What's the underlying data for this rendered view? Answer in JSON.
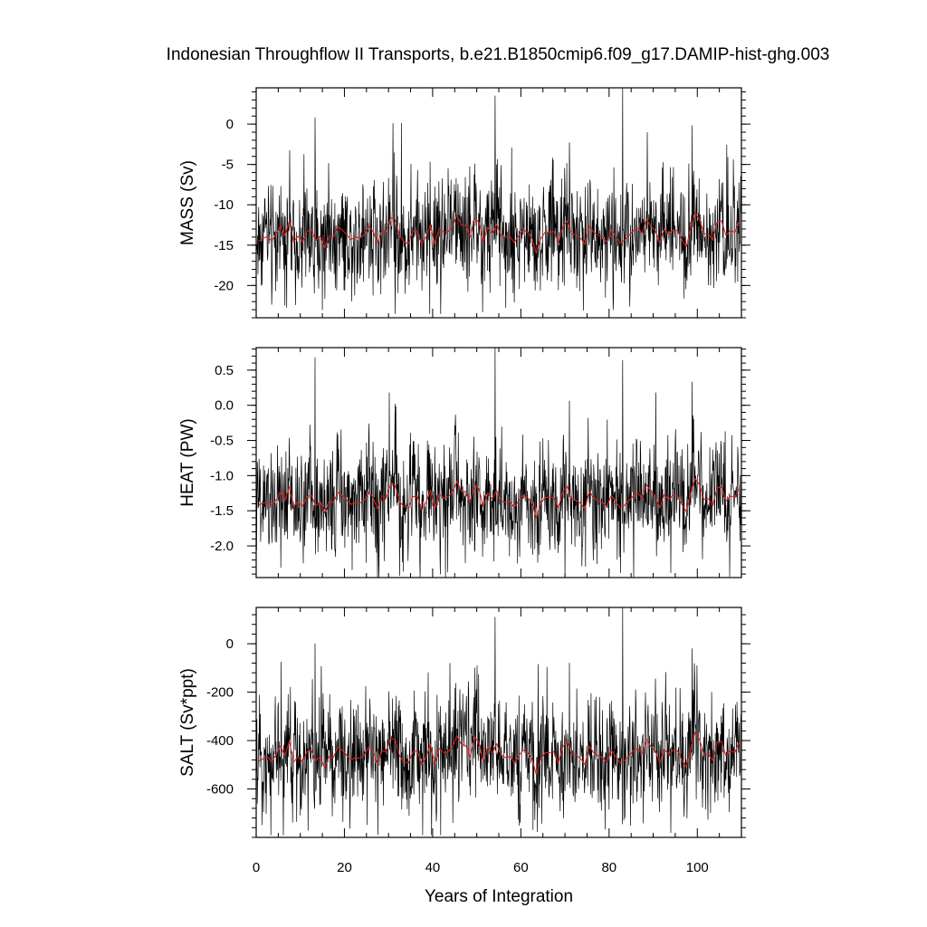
{
  "title": "Indonesian Throughflow II Transports, b.e21.B1850cmip6.f09_g17.DAMIP-hist-ghg.003",
  "colors": {
    "raw": "#000000",
    "smoothed": "#d62020",
    "frame": "#000000"
  },
  "chart_data": [
    {
      "type": "line",
      "ylabel": "MASS (Sv)",
      "xlabel": "",
      "xlim": [
        0,
        110
      ],
      "ylim": [
        -24.0,
        4.5
      ],
      "yticks": [
        0,
        -5,
        -10,
        -15,
        -20
      ],
      "ytick_labels": [
        "0",
        "-5",
        "-10",
        "-15",
        "-20"
      ],
      "xticks": [
        0,
        20,
        40,
        60,
        80,
        100
      ],
      "xtick_labels": [],
      "grid": false,
      "monthly": {
        "mean": -13.7,
        "amp": 3.2,
        "min": -23.5,
        "max": 4.5
      },
      "spikes": [
        {
          "x": 13.3,
          "y": 0.8
        },
        {
          "x": 54.2,
          "y": 3.5
        },
        {
          "x": 83.1,
          "y": 4.5
        },
        {
          "x": 98.8,
          "y": -0.2
        },
        {
          "x": 71.0,
          "y": -2.3
        },
        {
          "x": 31.5,
          "y": -23.5
        },
        {
          "x": 41.8,
          "y": -23.5
        }
      ],
      "series": [
        {
          "values": [
            -14.5,
            -14.2,
            -13.9,
            -14.5,
            -13.7,
            -12.6,
            -13.8,
            -12.0,
            -14.6,
            -13.9,
            -14.6,
            -13.3,
            -13.1,
            -14.4,
            -13.9,
            -15.3,
            -13.9,
            -14.0,
            -12.8,
            -13.1,
            -13.7,
            -14.3,
            -14.0,
            -14.1,
            -13.7,
            -12.7,
            -13.3,
            -14.8,
            -13.2,
            -13.3,
            -11.6,
            -11.8,
            -13.8,
            -14.6,
            -14.8,
            -13.3,
            -13.2,
            -14.9,
            -14.0,
            -12.5,
            -14.9,
            -12.9,
            -13.4,
            -13.3,
            -12.7,
            -11.3,
            -12.5,
            -12.6,
            -14.0,
            -11.6,
            -12.2,
            -14.6,
            -12.8,
            -13.6,
            -12.4,
            -13.8,
            -14.0,
            -13.9,
            -14.7,
            -13.8,
            -13.1,
            -13.4,
            -14.1,
            -16.0,
            -14.2,
            -13.4,
            -13.4,
            -13.3,
            -14.7,
            -12.7,
            -12.0,
            -13.6,
            -13.7,
            -14.1,
            -14.9,
            -12.6,
            -13.4,
            -13.8,
            -14.0,
            -14.6,
            -13.1,
            -13.9,
            -14.7,
            -14.4,
            -13.8,
            -13.2,
            -12.9,
            -13.5,
            -11.8,
            -12.7,
            -13.2,
            -14.7,
            -13.0,
            -13.6,
            -13.1,
            -13.2,
            -14.3,
            -15.2,
            -12.9,
            -11.0,
            -11.8,
            -13.6,
            -13.6,
            -14.4,
            -12.1,
            -12.0,
            -13.8,
            -13.2,
            -13.4,
            -12.1
          ]
        }
      ]
    },
    {
      "type": "line",
      "ylabel": "HEAT (PW)",
      "xlabel": "",
      "xlim": [
        0,
        110
      ],
      "ylim": [
        -2.45,
        0.82
      ],
      "yticks": [
        0.5,
        0.0,
        -0.5,
        -1.0,
        -1.5,
        -2.0
      ],
      "ytick_labels": [
        "0.5",
        "0.0",
        "-0.5",
        "-1.0",
        "-1.5",
        "-2.0"
      ],
      "xticks": [
        0,
        20,
        40,
        60,
        80,
        100
      ],
      "xtick_labels": [],
      "grid": false,
      "monthly": {
        "mean": -1.36,
        "amp": 0.36,
        "min": -2.45,
        "max": 0.82
      },
      "spikes": [
        {
          "x": 13.3,
          "y": 0.68
        },
        {
          "x": 54.2,
          "y": 0.82
        },
        {
          "x": 83.1,
          "y": 0.64
        },
        {
          "x": 98.8,
          "y": 0.33
        },
        {
          "x": 71.0,
          "y": 0.06
        },
        {
          "x": 32.5,
          "y": -2.42
        },
        {
          "x": 94.0,
          "y": -2.38
        }
      ],
      "series": [
        {
          "values": [
            -1.42,
            -1.39,
            -1.37,
            -1.42,
            -1.35,
            -1.23,
            -1.36,
            -1.16,
            -1.44,
            -1.37,
            -1.44,
            -1.3,
            -1.28,
            -1.43,
            -1.37,
            -1.53,
            -1.37,
            -1.38,
            -1.24,
            -1.28,
            -1.35,
            -1.41,
            -1.38,
            -1.39,
            -1.35,
            -1.24,
            -1.31,
            -1.47,
            -1.29,
            -1.31,
            -1.12,
            -1.14,
            -1.37,
            -1.44,
            -1.46,
            -1.3,
            -1.29,
            -1.48,
            -1.38,
            -1.21,
            -1.48,
            -1.26,
            -1.32,
            -1.3,
            -1.24,
            -1.08,
            -1.22,
            -1.23,
            -1.38,
            -1.12,
            -1.19,
            -1.44,
            -1.25,
            -1.33,
            -1.21,
            -1.36,
            -1.38,
            -1.37,
            -1.45,
            -1.36,
            -1.28,
            -1.31,
            -1.39,
            -1.6,
            -1.4,
            -1.31,
            -1.31,
            -1.31,
            -1.46,
            -1.23,
            -1.15,
            -1.33,
            -1.35,
            -1.39,
            -1.48,
            -1.23,
            -1.31,
            -1.36,
            -1.38,
            -1.44,
            -1.28,
            -1.37,
            -1.46,
            -1.42,
            -1.36,
            -1.29,
            -1.25,
            -1.32,
            -1.13,
            -1.23,
            -1.29,
            -1.46,
            -1.27,
            -1.34,
            -1.28,
            -1.29,
            -1.41,
            -1.51,
            -1.25,
            -1.04,
            -1.13,
            -1.34,
            -1.33,
            -1.42,
            -1.17,
            -1.16,
            -1.36,
            -1.29,
            -1.31,
            -1.17
          ]
        }
      ]
    },
    {
      "type": "line",
      "ylabel": "SALT (Sv*ppt)",
      "xlabel": "Years of Integration",
      "xlim": [
        0,
        110
      ],
      "ylim": [
        -800,
        150
      ],
      "yticks": [
        0,
        -200,
        -400,
        -600
      ],
      "ytick_labels": [
        "0",
        "-200",
        "-400",
        "-600"
      ],
      "xticks": [
        0,
        20,
        40,
        60,
        80,
        100
      ],
      "xtick_labels": [
        "0",
        "20",
        "40",
        "60",
        "80",
        "100"
      ],
      "grid": false,
      "monthly": {
        "mean": -470,
        "amp": 110,
        "min": -790,
        "max": 150
      },
      "spikes": [
        {
          "x": 13.3,
          "y": 0
        },
        {
          "x": 54.2,
          "y": 110
        },
        {
          "x": 83.1,
          "y": 150
        },
        {
          "x": 98.8,
          "y": -20
        },
        {
          "x": 71.0,
          "y": -80
        },
        {
          "x": 41.8,
          "y": -790
        },
        {
          "x": 94.0,
          "y": -780
        }
      ],
      "series": [
        {
          "values": [
            -486,
            -476,
            -466,
            -486,
            -460,
            -423,
            -463,
            -403,
            -489,
            -466,
            -489,
            -446,
            -440,
            -483,
            -466,
            -513,
            -466,
            -470,
            -426,
            -440,
            -460,
            -480,
            -470,
            -473,
            -460,
            -426,
            -446,
            -496,
            -443,
            -446,
            -390,
            -396,
            -463,
            -489,
            -493,
            -446,
            -443,
            -499,
            -470,
            -416,
            -499,
            -433,
            -450,
            -446,
            -426,
            -380,
            -416,
            -420,
            -466,
            -386,
            -406,
            -489,
            -426,
            -453,
            -413,
            -460,
            -470,
            -466,
            -493,
            -463,
            -440,
            -450,
            -473,
            -540,
            -476,
            -450,
            -450,
            -446,
            -493,
            -426,
            -403,
            -456,
            -460,
            -473,
            -499,
            -423,
            -450,
            -463,
            -470,
            -489,
            -440,
            -466,
            -493,
            -483,
            -463,
            -443,
            -433,
            -453,
            -396,
            -426,
            -443,
            -493,
            -436,
            -456,
            -440,
            -443,
            -480,
            -509,
            -433,
            -366,
            -396,
            -456,
            -456,
            -483,
            -406,
            -403,
            -463,
            -443,
            -450,
            -406
          ]
        }
      ]
    }
  ]
}
